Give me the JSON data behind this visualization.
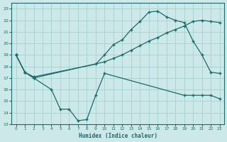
{
  "background_color": "#cde8e8",
  "grid_color": "#a0cccc",
  "line_color": "#1a6b6b",
  "xlabel": "Humidex (Indice chaleur)",
  "xlim": [
    -0.5,
    23.5
  ],
  "ylim": [
    13,
    23.5
  ],
  "yticks": [
    13,
    14,
    15,
    16,
    17,
    18,
    19,
    20,
    21,
    22,
    23
  ],
  "xticks": [
    0,
    1,
    2,
    3,
    4,
    5,
    6,
    7,
    8,
    9,
    10,
    11,
    12,
    13,
    14,
    15,
    16,
    17,
    18,
    19,
    20,
    21,
    22,
    23
  ],
  "line1_x": [
    0,
    1,
    2,
    10,
    11,
    12,
    13,
    14,
    15,
    16,
    17,
    18,
    19,
    20,
    21,
    22,
    23
  ],
  "line1_y": [
    19.0,
    17.5,
    17.0,
    18.4,
    18.7,
    19.0,
    19.4,
    19.8,
    20.2,
    20.5,
    20.9,
    21.2,
    21.5,
    21.9,
    22.0,
    21.9,
    21.8
  ],
  "line2_x": [
    0,
    1,
    2,
    9,
    10,
    11,
    12,
    13,
    14,
    15,
    16,
    17,
    18,
    19,
    20,
    21,
    22,
    23
  ],
  "line2_y": [
    19.0,
    17.5,
    17.1,
    18.2,
    19.0,
    19.9,
    20.3,
    21.2,
    21.9,
    22.7,
    22.8,
    22.3,
    22.0,
    21.8,
    20.2,
    19.0,
    17.5,
    17.4
  ],
  "line3_x": [
    0,
    1,
    2,
    4,
    5,
    6,
    7,
    8,
    9,
    10,
    19,
    20,
    21,
    22,
    23
  ],
  "line3_y": [
    19.0,
    17.5,
    17.0,
    16.0,
    14.3,
    14.3,
    13.3,
    13.4,
    15.5,
    17.4,
    15.5,
    15.5,
    15.5,
    15.5,
    15.2
  ]
}
